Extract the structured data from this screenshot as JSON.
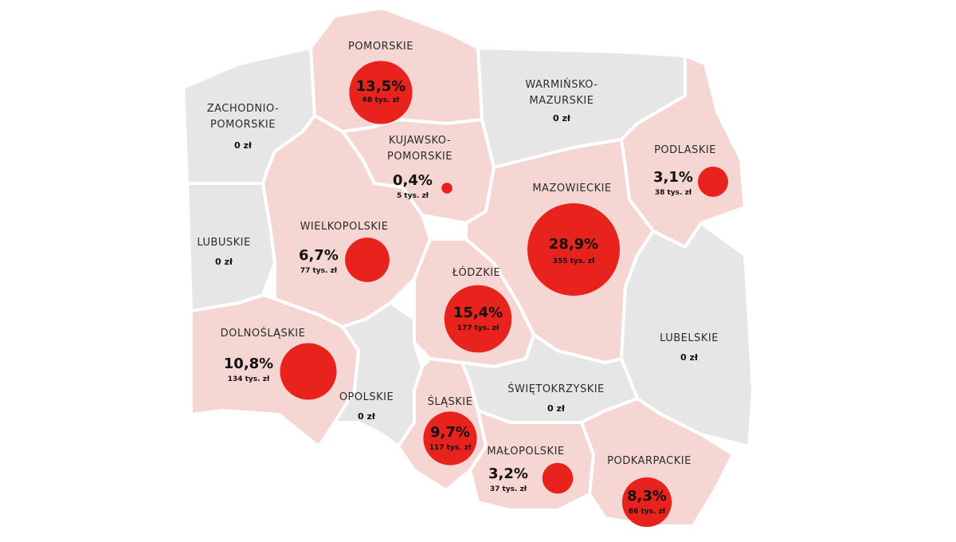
{
  "map": {
    "colors": {
      "highlighted": "#f5d6d2",
      "neutral": "#e6e6e6",
      "border": "#ffffff",
      "bubble": "#e8231e"
    },
    "regions": [
      {
        "id": "pomorskie",
        "name": "POMORSKIE",
        "pct": "13,5%",
        "amount": "68 tys. zł",
        "value": 13.5,
        "highlighted": true
      },
      {
        "id": "warminsko",
        "name": "WARMIŃSKO-",
        "name2": "MAZURSKIE",
        "amount": "0 zł",
        "highlighted": false
      },
      {
        "id": "zachodnio",
        "name": "ZACHODNIO-",
        "name2": "POMORSKIE",
        "amount": "0 zł",
        "highlighted": false
      },
      {
        "id": "kujawsko",
        "name": "KUJAWSKO-",
        "name2": "POMORSKIE",
        "pct": "0,4%",
        "amount": "5 tys. zł",
        "value": 0.4,
        "highlighted": true
      },
      {
        "id": "podlaskie",
        "name": "PODLASKIE",
        "pct": "3,1%",
        "amount": "38 tys. zł",
        "value": 3.1,
        "highlighted": true
      },
      {
        "id": "mazowieckie",
        "name": "MAZOWIECKIE",
        "pct": "28,9%",
        "amount": "355 tys. zł",
        "value": 28.9,
        "highlighted": true
      },
      {
        "id": "lubuskie",
        "name": "LUBUSKIE",
        "amount": "0 zł",
        "highlighted": false
      },
      {
        "id": "wielkopolskie",
        "name": "WIELKOPOLSKIE",
        "pct": "6,7%",
        "amount": "77 tys. zł",
        "value": 6.7,
        "highlighted": true
      },
      {
        "id": "lodzkie",
        "name": "ŁÓDZKIE",
        "pct": "15,4%",
        "amount": "177 tys. zł",
        "value": 15.4,
        "highlighted": true
      },
      {
        "id": "lubelskie",
        "name": "LUBELSKIE",
        "amount": "0 zł",
        "highlighted": false
      },
      {
        "id": "dolnoslaskie",
        "name": "DOLNOŚLĄSKIE",
        "pct": "10,8%",
        "amount": "134 tys. zł",
        "value": 10.8,
        "highlighted": true
      },
      {
        "id": "opolskie",
        "name": "OPOLSKIE",
        "amount": "0 zł",
        "highlighted": false
      },
      {
        "id": "slaskie",
        "name": "ŚLĄSKIE",
        "pct": "9,7%",
        "amount": "117 tys. zł",
        "value": 9.7,
        "highlighted": true
      },
      {
        "id": "swietokrzyskie",
        "name": "ŚWIĘTOKRZYSKIE",
        "amount": "0 zł",
        "highlighted": false
      },
      {
        "id": "malopolskie",
        "name": "MAŁOPOLSKIE",
        "pct": "3,2%",
        "amount": "37 tys. zł",
        "value": 3.2,
        "highlighted": true
      },
      {
        "id": "podkarpackie",
        "name": "PODKARPACKIE",
        "pct": "8,3%",
        "amount": "86 tys. zł",
        "value": 8.3,
        "highlighted": true
      }
    ]
  }
}
